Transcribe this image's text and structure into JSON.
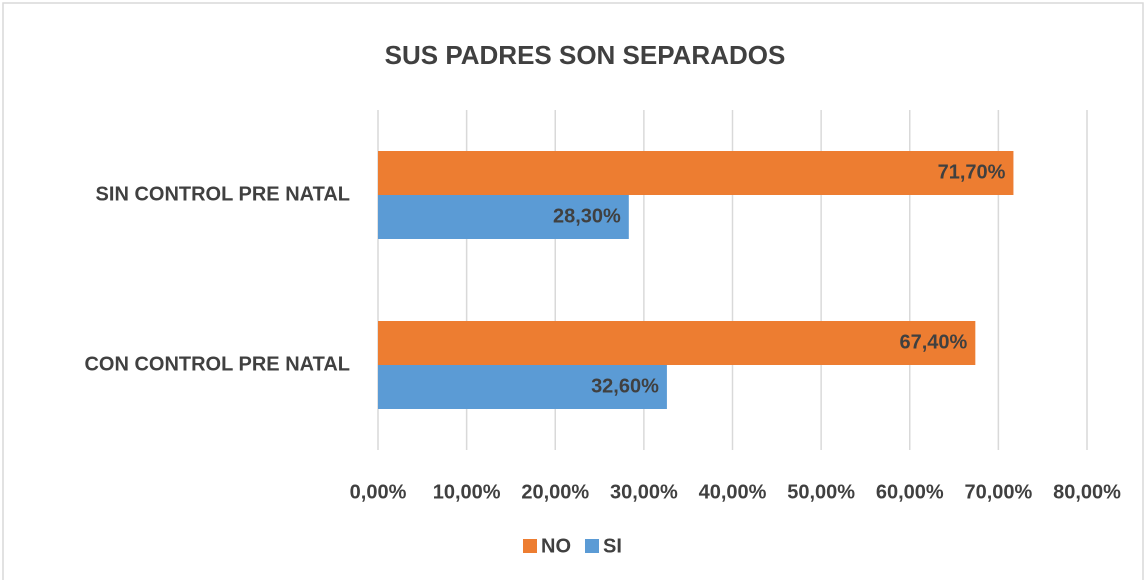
{
  "chart_data": {
    "type": "hbar",
    "title": "SUS PADRES SON SEPARADOS",
    "categories": [
      "SIN CONTROL PRE NATAL",
      "CON CONTROL PRE NATAL"
    ],
    "series": [
      {
        "name": "NO",
        "color": "#ed7d31",
        "values": [
          71.7,
          67.4
        ],
        "value_labels": [
          "71,70%",
          "67,40%"
        ]
      },
      {
        "name": "SI",
        "color": "#5b9bd5",
        "values": [
          28.3,
          32.6
        ],
        "value_labels": [
          "28,30%",
          "32,60%"
        ]
      }
    ],
    "xlim": [
      0,
      80
    ],
    "xticks": [
      {
        "value": 0,
        "label": "0,00%"
      },
      {
        "value": 10,
        "label": "10,00%"
      },
      {
        "value": 20,
        "label": "20,00%"
      },
      {
        "value": 30,
        "label": "30,00%"
      },
      {
        "value": 40,
        "label": "40,00%"
      },
      {
        "value": 50,
        "label": "50,00%"
      },
      {
        "value": 60,
        "label": "60,00%"
      },
      {
        "value": 70,
        "label": "70,00%"
      },
      {
        "value": 80,
        "label": "80,00%"
      }
    ],
    "grid": true,
    "legend": "bottom"
  }
}
